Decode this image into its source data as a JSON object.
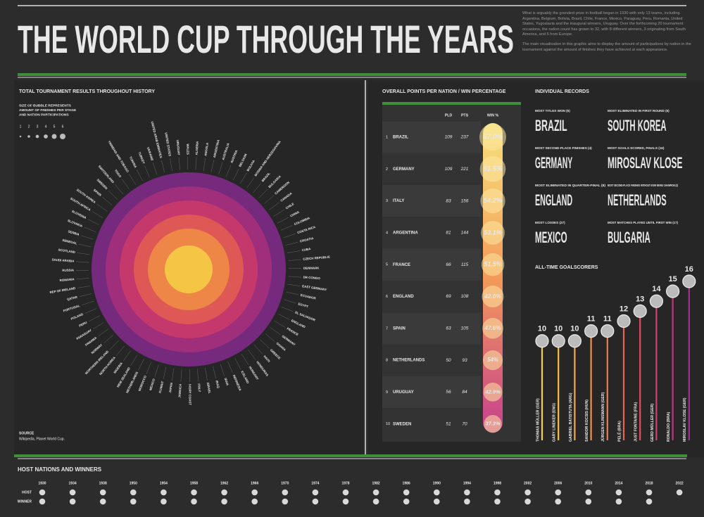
{
  "header": {
    "title": "THE WORLD CUP THROUGH THE YEARS",
    "description": [
      "What is arguably the grandest prize in football began in 1930 with only 13 teams, including Argentina, Belgium, Bolivia, Brazil, Chile, France, Mexico, Paraguay, Peru, Romania, United States, Yugoslavia and the inaugural winners, Uruguay. Over the forthcoming 20 tournament occasions, the nation count has grown to 32, with 8 different winners, 3 originating from South America, and 5 from Europe.",
      "The main visualisation in this graphic aims to display the amount of participations by nation in the tournament against the amount of finishes they have achieved at each appearance."
    ]
  },
  "radial": {
    "title": "TOTAL TOURNAMENT RESULTS THROUGHOUT HISTORY",
    "legend_title": [
      "SIZE OF BUBBLE REPRESENTS",
      "AMOUNT OF FINISHES PER STAGE",
      "AND NATION PARTICIPATIONS"
    ],
    "legend_sizes": [
      1,
      2,
      3,
      4,
      5,
      6
    ],
    "nations": [
      "ALGERIA",
      "ANGOLA",
      "ARGENTINA",
      "AUSTRALIA",
      "AUSTRIA",
      "BELGIUM",
      "BOLIVIA",
      "BOSNIA AND HERZEGOVINA",
      "BRAZIL",
      "BULGARIA",
      "CAMEROON",
      "CANADA",
      "CHILE",
      "CHINA",
      "COLOMBIA",
      "COSTA RICA",
      "CROATIA",
      "CUBA",
      "CZECH REPUBLIC",
      "DENMARK",
      "DR CONGO",
      "EAST GERMANY",
      "ECUADOR",
      "EGYPT",
      "EL SALVADOR",
      "ENGLAND",
      "FRANCE",
      "GERMANY",
      "GHANA",
      "GREECE",
      "HAITI",
      "HONDURAS",
      "HUNGARY",
      "ICELAND",
      "INDONESIA",
      "IRAN",
      "IRAQ",
      "ISRAEL",
      "ITALY",
      "IVORY COAST",
      "JAMAICA",
      "JAPAN",
      "KUWAIT",
      "MEXICO",
      "MOROCCO",
      "NETHERLANDS",
      "NEW ZEALAND",
      "NIGERIA",
      "NORTH KOREA",
      "NORTHERN IRELAND",
      "NORWAY",
      "PANAMA",
      "PARAGUAY",
      "PERU",
      "POLAND",
      "PORTUGAL",
      "QATAR",
      "REP OF IRELAND",
      "ROMANIA",
      "RUSSIA",
      "SAUDI ARABIA",
      "SCOTLAND",
      "SENEGAL",
      "SERBIA",
      "SLOVAKIA",
      "SLOVENIA",
      "SOUTH AFRICA",
      "SOUTH KOREA",
      "SPAIN",
      "SWEDEN",
      "SWITZERLAND",
      "TOGO",
      "TRINIDAD AND TOBAGO",
      "TUNISIA",
      "TURKEY",
      "UKRAINE",
      "UNITED ARAB EMIRATES",
      "UNITED STATES",
      "URUGUAY",
      "WALES"
    ],
    "source_label": "SOURCE",
    "source": "Wikipedia, Planet World Cup."
  },
  "table": {
    "title": "OVERALL POINTS PER NATION / WIN PERCENTAGE",
    "columns": [
      "PLD",
      "PTS",
      "WIN %"
    ],
    "rows": [
      [
        "1",
        "BRAZIL",
        "109",
        "237",
        "67.0%"
      ],
      [
        "2",
        "GERMANY",
        "109",
        "221",
        "61.5%"
      ],
      [
        "3",
        "ITALY",
        "83",
        "156",
        "54.2%"
      ],
      [
        "4",
        "ARGENTINA",
        "81",
        "144",
        "53.1%"
      ],
      [
        "5",
        "FRANCE",
        "66",
        "115",
        "51.5%"
      ],
      [
        "6",
        "ENGLAND",
        "69",
        "108",
        "42.0%"
      ],
      [
        "7",
        "SPAIN",
        "63",
        "105",
        "47.6%"
      ],
      [
        "8",
        "NETHERLANDS",
        "50",
        "93",
        "54%"
      ],
      [
        "9",
        "URUGUAY",
        "56",
        "84",
        "42.9%"
      ],
      [
        "10",
        "SWEDEN",
        "51",
        "70",
        "37.3%"
      ]
    ]
  },
  "records": {
    "title": "INDIVIDUAL RECORDS",
    "items": [
      {
        "label": "MOST TITLES WON (5)",
        "value": "BRAZIL"
      },
      {
        "label": "MOST ELIMINATED IN FIRST ROUND (6)",
        "value": "SOUTH KOREA"
      },
      {
        "label": "MOST SECOND-PLACE FINISHES (4)",
        "value": "GERMANY"
      },
      {
        "label": "MOST GOALS SCORED, FINALS (16)",
        "value": "MIROSLAV KLOSE"
      },
      {
        "label": "MOST ELIMINATED IN QUARTER-FINAL (8)",
        "value": "ENGLAND"
      },
      {
        "label": "MOST SECOND-PLACE FINISHES WITHOUT EVER BEING CHAMPION (3)",
        "value": "NETHERLANDS"
      },
      {
        "label": "MOST LOSSES (27)",
        "value": "MEXICO"
      },
      {
        "label": "MOST MATCHES PLAYED UNTIL FIRST WIN (17)",
        "value": "BULGARIA"
      }
    ]
  },
  "chart_data": {
    "type": "lollipop",
    "title": "ALL-TIME GOALSCORERS",
    "categories": [
      "THOMAS MÜLLER (GER)",
      "GARY LINEKER (ENG)",
      "GABRIEL BATISTUTA (ARG)",
      "SANDOR KOCSIS (HUN)",
      "JÜRGEN KLINSMANN (GER)",
      "PELÉ (BRA)",
      "JUST FONTAINE (FRA)",
      "GERD MÜLLER (GER)",
      "RONALDO (BRA)",
      "MIROSLAV KLOSE (GER)"
    ],
    "values": [
      10,
      10,
      10,
      11,
      11,
      12,
      13,
      14,
      15,
      16
    ],
    "colors": [
      "#f7d04a",
      "#f6bd48",
      "#f4a847",
      "#f29248",
      "#ef7c4c",
      "#ea6551",
      "#e24f5c",
      "#d33f6e",
      "#bf3580",
      "#a52f8e"
    ]
  },
  "hosts": {
    "title": "HOST NATIONS AND WINNERS",
    "row_labels": [
      "HOST",
      "WINNER"
    ],
    "years": [
      "1930",
      "1934",
      "1938",
      "1950",
      "1954",
      "1958",
      "1962",
      "1966",
      "1970",
      "1974",
      "1978",
      "1982",
      "1986",
      "1990",
      "1994",
      "1998",
      "2002",
      "2006",
      "2010",
      "2014",
      "2018",
      "2022"
    ]
  }
}
